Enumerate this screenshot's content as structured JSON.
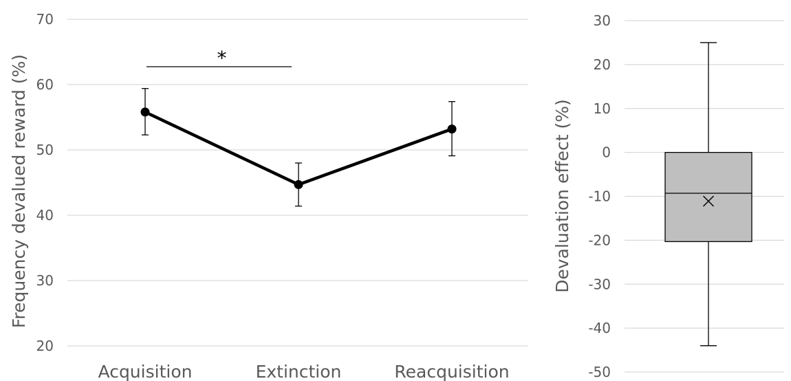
{
  "chart_data": [
    {
      "type": "line",
      "title": "",
      "xlabel": "",
      "ylabel": "Frequency devalued reward (%)",
      "ylim": [
        20,
        70
      ],
      "yticks": [
        20,
        30,
        40,
        50,
        60,
        70
      ],
      "grid": true,
      "categories": [
        "Acquisition",
        "Extinction",
        "Reacquisition"
      ],
      "series": [
        {
          "values": [
            55.8,
            44.7,
            53.2
          ],
          "error_low": [
            52.3,
            41.4,
            49.1
          ],
          "error_high": [
            59.4,
            48.0,
            57.4
          ],
          "color": "#000000"
        }
      ],
      "annotations": [
        {
          "text": "*",
          "between": [
            "Acquisition",
            "Extinction"
          ]
        }
      ]
    },
    {
      "type": "box",
      "title": "",
      "xlabel": "",
      "ylabel": "Devaluation effect (%)",
      "ylim": [
        -50,
        30
      ],
      "yticks": [
        -50,
        -40,
        -30,
        -20,
        -10,
        0,
        10,
        20,
        30
      ],
      "grid": true,
      "box": {
        "min": -44,
        "q1": -20.3,
        "median": -9.3,
        "q3": 0,
        "max": 25,
        "mean": -11.1,
        "fill": "#bfbfbf"
      }
    }
  ]
}
